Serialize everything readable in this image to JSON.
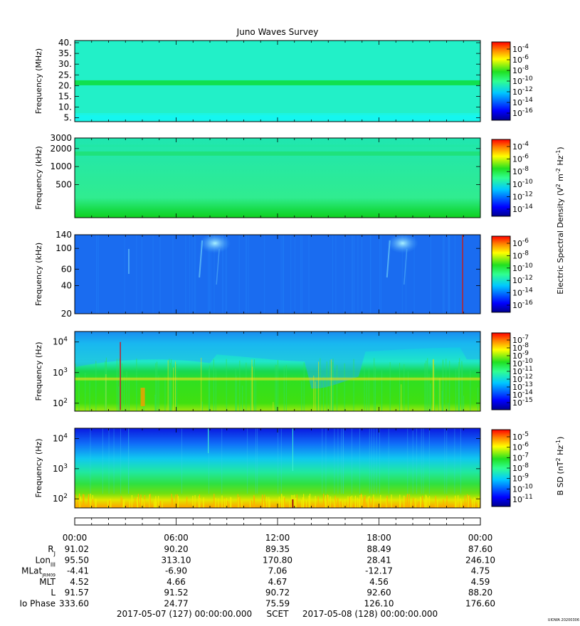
{
  "title": "Juno Waves Survey",
  "chart_data": [
    {
      "type": "heatmap",
      "panel": "hfr-high",
      "ylabel": "Frequency (MHz)",
      "scale": "linear",
      "ylim": [
        3.2,
        41
      ],
      "yticks": [
        5,
        10,
        15,
        20,
        25,
        30,
        35,
        40
      ],
      "ytick_labels": [
        "5.",
        "10.",
        "15.",
        "20.",
        "25.",
        "30.",
        "35.",
        "40."
      ],
      "colorbar": {
        "exponents": [
          "-4",
          "-6",
          "-8",
          "-10",
          "-12",
          "-14",
          "-16"
        ],
        "label": ""
      },
      "background_color": "#22f0c8",
      "features": [
        {
          "kind": "horizontal_band",
          "y": 21.3,
          "color": "#10e050"
        },
        {
          "kind": "horizontal_band",
          "y": 5.0,
          "color": "#10f4f0"
        }
      ]
    },
    {
      "type": "heatmap",
      "panel": "hfr-low",
      "ylabel": "Frequency (kHz)",
      "scale": "log",
      "ylim": [
        140,
        3000
      ],
      "yticks": [
        500,
        1000,
        2000,
        3000
      ],
      "ytick_labels": [
        "500",
        "1000",
        "2000",
        "3000"
      ],
      "colorbar": {
        "exponents": [
          "-4",
          "-6",
          "-8",
          "-10",
          "-12",
          "-14"
        ],
        "label": "Electric Spectral Density (V² m⁻² Hz⁻¹)"
      },
      "background_color": "#38f0a0",
      "features": [
        {
          "kind": "horizontal_band",
          "y": 1650,
          "color": "#20e078"
        },
        {
          "kind": "low_band",
          "y": 170,
          "color": "#10d830"
        }
      ]
    },
    {
      "type": "heatmap",
      "panel": "lfr-high",
      "ylabel": "Frequency (kHz)",
      "scale": "log",
      "ylim": [
        20,
        140
      ],
      "yticks": [
        20,
        40,
        60,
        100,
        140
      ],
      "ytick_labels": [
        "20",
        "40",
        "60",
        "100",
        "140"
      ],
      "colorbar": {
        "exponents": [
          "-6",
          "-8",
          "-10",
          "-12",
          "-14",
          "-16"
        ],
        "label": ""
      },
      "background_color": "#1a6cf0",
      "features": [
        {
          "kind": "burst",
          "x_hours": 8.3,
          "color": "#6ad0f8"
        },
        {
          "kind": "burst",
          "x_hours": 19.4,
          "color": "#6ad0f8"
        },
        {
          "kind": "spike",
          "x_hours": 22.95,
          "color": "#c02020"
        }
      ]
    },
    {
      "type": "heatmap",
      "panel": "lfr-low",
      "ylabel": "Frequency (Hz)",
      "scale": "log",
      "ylim": [
        55,
        22000
      ],
      "yticks": [
        100,
        1000,
        10000
      ],
      "ytick_labels": [
        {
          "base": "10",
          "exp": "2"
        },
        {
          "base": "10",
          "exp": "3"
        },
        {
          "base": "10",
          "exp": "4"
        }
      ],
      "colorbar": {
        "exponents": [
          "-7",
          "-8",
          "-9",
          "-10",
          "-11",
          "-12",
          "-13",
          "-14",
          "-15"
        ],
        "label": ""
      },
      "background_color": "#20d850"
    },
    {
      "type": "heatmap",
      "panel": "magnetic",
      "ylabel": "Frequency (Hz)",
      "scale": "log",
      "ylim": [
        50,
        22000
      ],
      "yticks": [
        100,
        1000,
        10000
      ],
      "ytick_labels": [
        {
          "base": "10",
          "exp": "2"
        },
        {
          "base": "10",
          "exp": "3"
        },
        {
          "base": "10",
          "exp": "4"
        }
      ],
      "colorbar": {
        "exponents": [
          "-5",
          "-6",
          "-7",
          "-8",
          "-9",
          "-10",
          "-11"
        ],
        "label": "B SD (nT² Hz⁻¹)"
      },
      "background_color": "#20e0a0"
    }
  ],
  "ephemeris": {
    "time_labels": [
      "00:00",
      "06:00",
      "12:00",
      "18:00",
      "00:00"
    ],
    "rows": [
      {
        "label": "R",
        "sub": "J",
        "values": [
          "91.02",
          "90.20",
          "89.35",
          "88.49",
          "87.60"
        ]
      },
      {
        "label": "Lon",
        "sub": "III",
        "values": [
          "95.50",
          "313.10",
          "170.80",
          "28.41",
          "246.10"
        ]
      },
      {
        "label": "MLat",
        "sub": "JRM09",
        "values": [
          "-4.41",
          "-6.90",
          "7.06",
          "-12.17",
          "4.75"
        ]
      },
      {
        "label": "MLT",
        "sub": "",
        "values": [
          "4.52",
          "4.66",
          "4.67",
          "4.56",
          "4.59"
        ]
      },
      {
        "label": "L",
        "sub": "",
        "values": [
          "91.57",
          "91.52",
          "90.72",
          "92.60",
          "88.20"
        ]
      },
      {
        "label": "Io Phase",
        "sub": "",
        "values": [
          "333.60",
          "24.77",
          "75.59",
          "126.10",
          "176.60"
        ]
      }
    ],
    "footer_left": "2017-05-07 (127) 00:00:00.000",
    "footer_mid": "SCET",
    "footer_right": "2017-05-08 (128) 00:00:00.000"
  },
  "credit": "UIOWA 20200306",
  "colors": {
    "jet": [
      "#00008f",
      "#0000ff",
      "#0080ff",
      "#00ffff",
      "#80ff80",
      "#ffff00",
      "#ff8000",
      "#ff0000",
      "#800000"
    ]
  }
}
